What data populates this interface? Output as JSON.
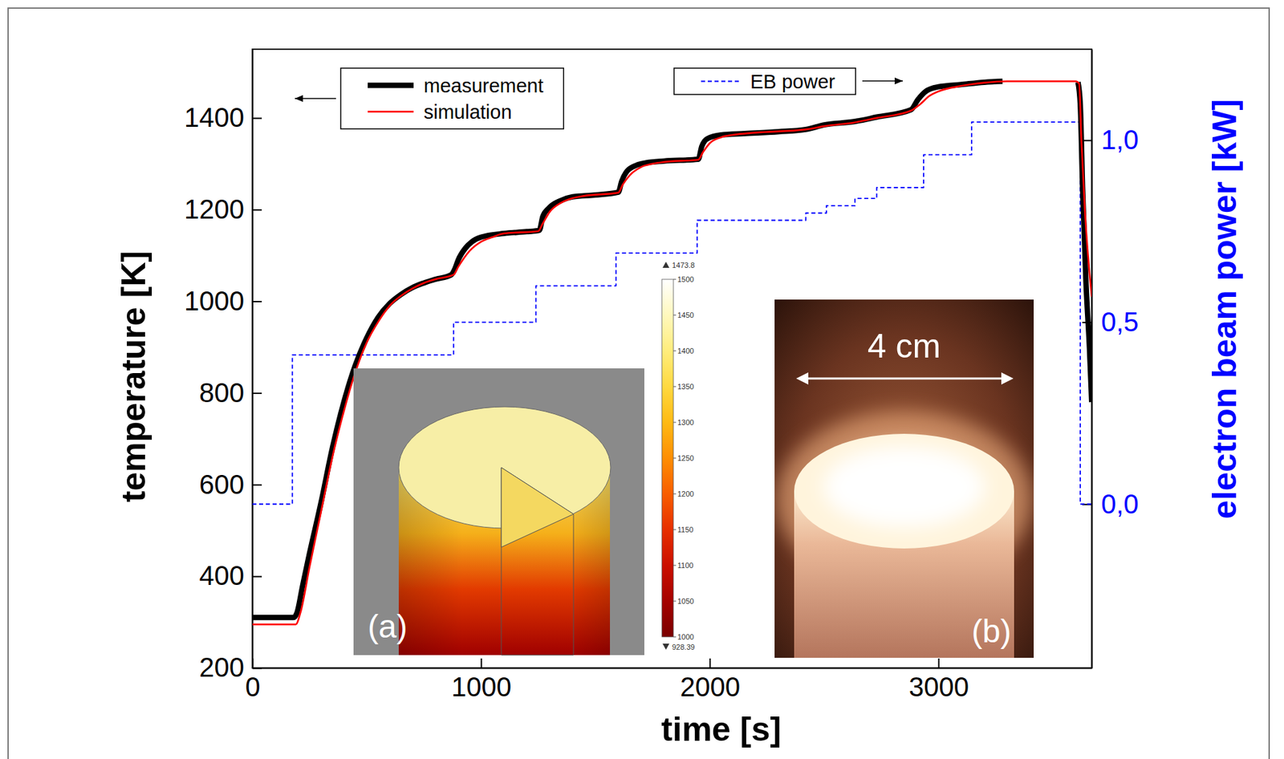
{
  "chart_data": {
    "type": "line",
    "x_label": "time [s]",
    "y_label": "temperature [K]",
    "y2_label": "electron beam power [kW]",
    "xlim": [
      0,
      3670
    ],
    "xticks": [
      0,
      1000,
      2000,
      3000
    ],
    "ylim": [
      200,
      1550
    ],
    "yticks": [
      200,
      400,
      600,
      800,
      1000,
      1200,
      1400
    ],
    "y2lim": [
      -0.45,
      1.25
    ],
    "y2ticks": [
      {
        "value": 0,
        "label": "0,0"
      },
      {
        "value": 0.5,
        "label": "0,5"
      },
      {
        "value": 1.0,
        "label": "1,0"
      }
    ],
    "legend": "top",
    "grid": false,
    "series": [
      {
        "name": "measurement",
        "color": "#000000",
        "type": "line",
        "x": [
          0,
          180,
          195,
          220,
          250,
          300,
          350,
          400,
          450,
          500,
          550,
          600,
          650,
          700,
          750,
          800,
          870,
          885,
          900,
          930,
          960,
          1000,
          1100,
          1200,
          1255,
          1270,
          1300,
          1350,
          1400,
          1500,
          1600,
          1615,
          1640,
          1680,
          1720,
          1800,
          1950,
          1965,
          1990,
          2050,
          2150,
          2300,
          2420,
          2500,
          2630,
          2730,
          2880,
          2910,
          2950,
          3000,
          3100,
          3200,
          3280,
          3300,
          3600,
          3610,
          3620,
          3630,
          3645,
          3660,
          3670
        ],
        "values": [
          310,
          310,
          320,
          380,
          450,
          560,
          680,
          780,
          860,
          920,
          965,
          995,
          1015,
          1030,
          1040,
          1048,
          1058,
          1070,
          1090,
          1115,
          1130,
          1140,
          1148,
          1152,
          1155,
          1185,
          1205,
          1220,
          1228,
          1232,
          1238,
          1262,
          1285,
          1297,
          1302,
          1306,
          1310,
          1338,
          1355,
          1363,
          1366,
          1370,
          1375,
          1385,
          1392,
          1402,
          1418,
          1440,
          1460,
          1468,
          1473,
          1478,
          1480,
          null,
          null,
          1478,
          1430,
          1250,
          1040,
          900,
          780
        ]
      },
      {
        "name": "simulation",
        "color": "#ff0000",
        "type": "line",
        "x": [
          0,
          190,
          210,
          250,
          300,
          350,
          400,
          450,
          500,
          550,
          600,
          650,
          700,
          750,
          800,
          880,
          900,
          950,
          1000,
          1050,
          1100,
          1250,
          1270,
          1300,
          1350,
          1400,
          1450,
          1600,
          1620,
          1650,
          1700,
          1750,
          1800,
          1950,
          1970,
          2000,
          2050,
          2100,
          2200,
          2420,
          2500,
          2630,
          2730,
          2880,
          2920,
          2960,
          3000,
          3100,
          3200,
          3300,
          3600,
          3615,
          3625,
          3640,
          3670
        ],
        "values": [
          295,
          295,
          320,
          420,
          540,
          660,
          760,
          845,
          910,
          955,
          990,
          1012,
          1028,
          1040,
          1048,
          1058,
          1075,
          1110,
          1130,
          1140,
          1148,
          1153,
          1170,
          1195,
          1215,
          1225,
          1230,
          1237,
          1255,
          1275,
          1293,
          1300,
          1304,
          1309,
          1325,
          1345,
          1358,
          1363,
          1368,
          1375,
          1382,
          1390,
          1400,
          1416,
          1430,
          1448,
          1458,
          1470,
          1477,
          1480,
          1480,
          1475,
          1350,
          1200,
          1010
        ]
      },
      {
        "name": "EB power",
        "color": "#0000ff",
        "type": "step",
        "line_style": "dashed",
        "axis": "y2",
        "x": [
          0,
          175,
          880,
          1240,
          1590,
          1945,
          2420,
          2510,
          2635,
          2730,
          2935,
          3145,
          3620,
          3670
        ],
        "values": [
          0,
          0.41,
          0.5,
          0.6,
          0.69,
          0.78,
          0.8,
          0.82,
          0.84,
          0.87,
          0.96,
          1.05,
          0,
          0
        ]
      }
    ],
    "insets": [
      {
        "label": "(a)",
        "colorbar_range": [
          1000,
          1500
        ],
        "colorbar_ticks": [
          1000,
          1050,
          1100,
          1150,
          1200,
          1250,
          1300,
          1350,
          1400,
          1450,
          1500
        ],
        "max": 1473.8,
        "min": 928.39
      },
      {
        "label": "(b)",
        "annotation": "4 cm"
      }
    ]
  }
}
